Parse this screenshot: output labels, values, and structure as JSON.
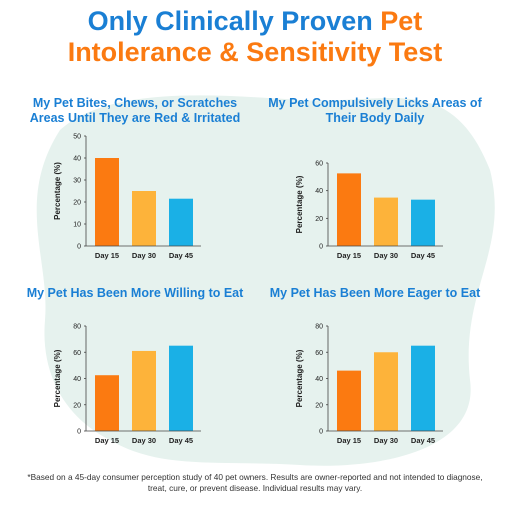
{
  "headline": {
    "line1_blue": "Only Clinically Proven ",
    "line1_orange": "Pet",
    "line2_orange": "Intolerance & Sensitivity Test"
  },
  "colors": {
    "blue": "#1a7fd4",
    "orange": "#fb7a11",
    "bar_day15": "#fb7a11",
    "bar_day30": "#fdb33a",
    "bar_day45": "#1ab0e6",
    "background_blob": "#e6f2ee"
  },
  "chart_data": [
    {
      "type": "bar",
      "title": "My Pet Bites, Chews, or Scratches Areas Until They are Red & Irritated",
      "categories": [
        "Day 15",
        "Day 30",
        "Day 45"
      ],
      "values": [
        40,
        25,
        21.5
      ],
      "ylabel": "Percentage (%)",
      "ylim": [
        0,
        50
      ],
      "yticks": [
        0,
        10,
        20,
        30,
        40,
        50
      ],
      "grid": false
    },
    {
      "type": "bar",
      "title": "My Pet Compulsively Licks Areas of Their Body Daily",
      "categories": [
        "Day 15",
        "Day 30",
        "Day 45"
      ],
      "values": [
        52.5,
        35,
        33.5
      ],
      "ylabel": "Percentage (%)",
      "ylim": [
        0,
        60
      ],
      "yticks": [
        0,
        20,
        40,
        60
      ],
      "grid": false
    },
    {
      "type": "bar",
      "title": "My Pet Has Been More Willing to Eat",
      "categories": [
        "Day 15",
        "Day 30",
        "Day 45"
      ],
      "values": [
        42.5,
        61,
        65
      ],
      "ylabel": "Percentage (%)",
      "ylim": [
        0,
        80
      ],
      "yticks": [
        0,
        20,
        40,
        60,
        80
      ],
      "grid": false
    },
    {
      "type": "bar",
      "title": "My Pet Has Been More Eager to Eat",
      "categories": [
        "Day 15",
        "Day 30",
        "Day 45"
      ],
      "values": [
        46,
        60,
        65
      ],
      "ylabel": "Percentage (%)",
      "ylim": [
        0,
        80
      ],
      "yticks": [
        0,
        20,
        40,
        60,
        80
      ],
      "grid": false
    }
  ],
  "footnote": "*Based on a 45-day consumer perception study of 40 pet owners. Results are owner-reported and not intended to diagnose, treat, cure, or prevent disease. Individual results may vary."
}
